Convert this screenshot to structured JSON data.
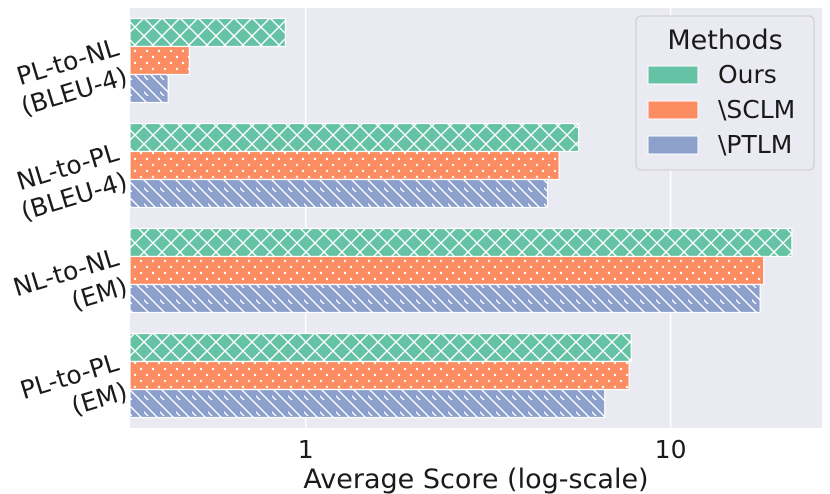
{
  "chart_data": {
    "type": "bar",
    "orientation": "horizontal",
    "x_scale": "log",
    "categories": [
      {
        "line1": "PL-to-NL",
        "line2": "(BLEU-4)"
      },
      {
        "line1": "NL-to-PL",
        "line2": "(BLEU-4)"
      },
      {
        "line1": "NL-to-NL",
        "line2": "(EM)"
      },
      {
        "line1": "PL-to-PL",
        "line2": "(EM)"
      }
    ],
    "series": [
      {
        "name": "Ours",
        "color": "#66c2a5",
        "pattern": "crosshatch",
        "values": [
          0.88,
          5.6,
          21.5,
          7.8
        ]
      },
      {
        "name": "\\SCLM",
        "color": "#fc8d62",
        "pattern": "dots",
        "values": [
          0.48,
          4.95,
          18.0,
          7.7
        ]
      },
      {
        "name": "\\PTLM",
        "color": "#8da0cb",
        "pattern": "diagonal",
        "values": [
          0.42,
          4.6,
          17.6,
          6.6
        ]
      }
    ],
    "xlabel": "Average Score (log-scale)",
    "ylabel": "",
    "xlim": [
      0.33,
      26
    ],
    "x_ticks": [
      {
        "value": 1,
        "label": "1"
      },
      {
        "value": 10,
        "label": "10"
      }
    ],
    "grid": true,
    "legend": {
      "title": "Methods",
      "position": "top-right"
    }
  }
}
